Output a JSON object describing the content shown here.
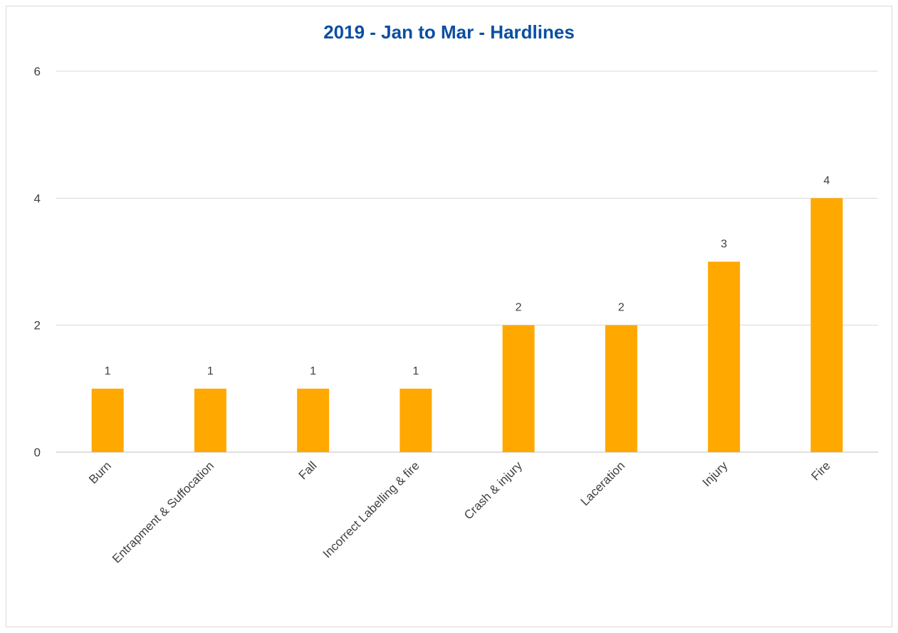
{
  "chart_data": {
    "type": "bar",
    "title": "2019 - Jan to Mar - Hardlines",
    "categories": [
      "Burn",
      "Entrapment & Suffocation",
      "Fall",
      "Incorrect Labelling & fire",
      "Crash & injury",
      "Laceration",
      "Injury",
      "Fire"
    ],
    "values": [
      1,
      1,
      1,
      1,
      2,
      2,
      3,
      4
    ],
    "data_labels": [
      "1",
      "1",
      "1",
      "1",
      "2",
      "2",
      "3",
      "4"
    ],
    "yticks": [
      "0",
      "2",
      "4",
      "6"
    ],
    "ytick_values": [
      0,
      2,
      4,
      6
    ],
    "ylim": [
      0,
      6
    ],
    "grid": true,
    "legend": "none",
    "colors": {
      "bar": "#FFA800",
      "grid": "#d9d9d9",
      "title": "#0b4ea2",
      "text": "#404040"
    }
  }
}
